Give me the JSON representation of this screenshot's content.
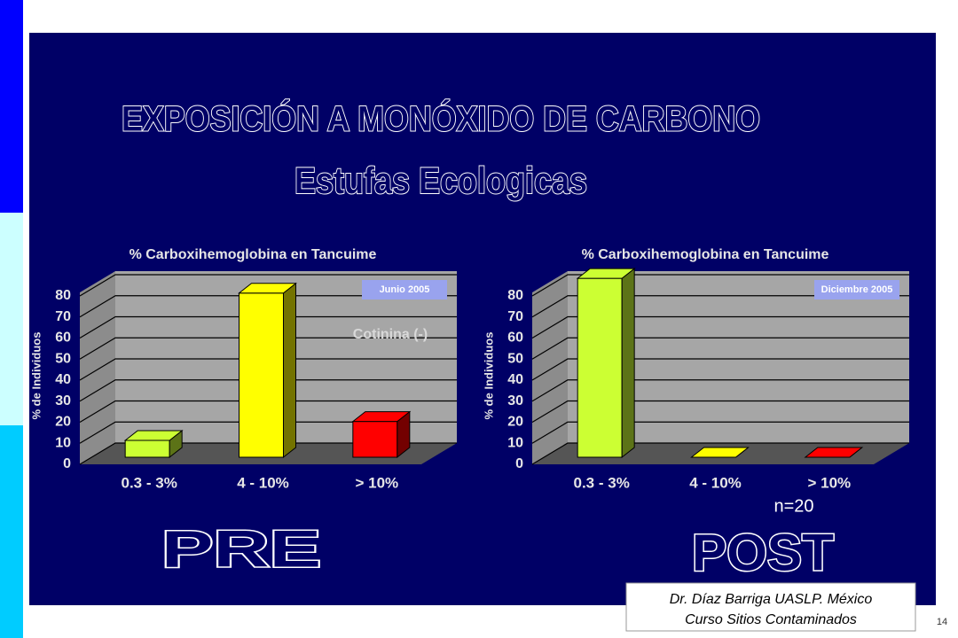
{
  "slide": {
    "title": "EXPOSICIÓN A MONÓXIDO DE CARBONO",
    "subtitle": "Estufas Ecologicas",
    "footer_line1": "Dr. Díaz Barriga UASLP. México",
    "footer_line2": "Curso Sitios Contaminados",
    "page_number": "14"
  },
  "chart_data": [
    {
      "type": "bar",
      "title": "% Carboxihemoglobina en Tancuime",
      "caption": "PRE",
      "date_label": "Junio 2005",
      "annotation": "Cotinina (-)",
      "y_label": "% de Individuos",
      "categories": [
        "0.3 - 3%",
        "4 - 10%",
        "> 10%"
      ],
      "values": [
        8,
        78,
        17
      ],
      "colors": [
        "#ccff33",
        "#ffff00",
        "#ff0000"
      ],
      "ylim": [
        0,
        80
      ],
      "yticks": [
        0,
        10,
        20,
        30,
        40,
        50,
        60,
        70,
        80
      ],
      "grid": true
    },
    {
      "type": "bar",
      "title": "% Carboxihemoglobina en Tancuime",
      "caption": "POST",
      "date_label": "Diciembre 2005",
      "annotation": "n=20",
      "y_label": "% de Individuos",
      "categories": [
        "0.3 - 3%",
        "4 - 10%",
        "> 10%"
      ],
      "values": [
        85,
        0,
        0
      ],
      "colors": [
        "#ccff33",
        "#ffff00",
        "#ff0000"
      ],
      "ylim": [
        0,
        80
      ],
      "yticks": [
        0,
        10,
        20,
        30,
        40,
        50,
        60,
        70,
        80
      ],
      "grid": true
    }
  ]
}
